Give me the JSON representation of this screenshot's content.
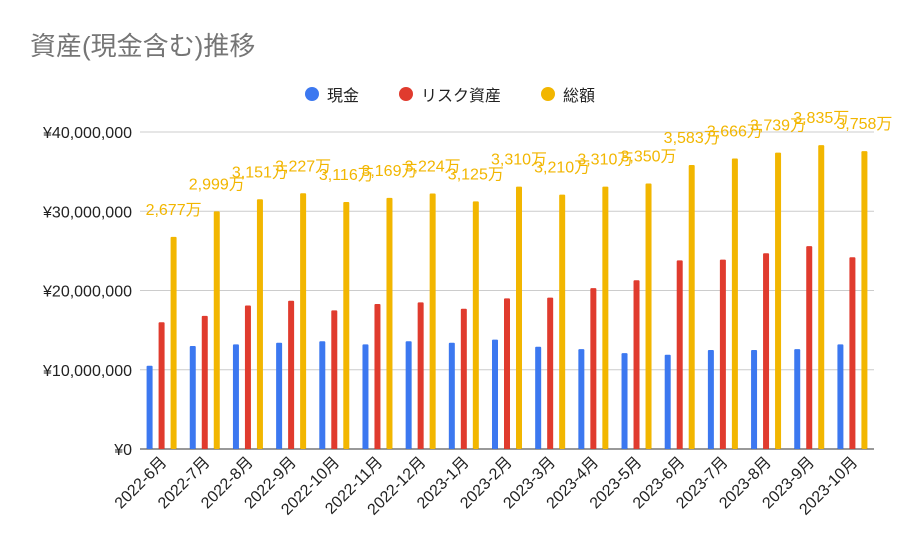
{
  "chart_data": {
    "type": "bar",
    "title": "資産(現金含む)推移",
    "categories": [
      "2022-6月",
      "2022-7月",
      "2022-8月",
      "2022-9月",
      "2022-10月",
      "2022-11月",
      "2022-12月",
      "2023-1月",
      "2023-2月",
      "2023-3月",
      "2023-4月",
      "2023-5月",
      "2023-6月",
      "2023-7月",
      "2023-8月",
      "2023-9月",
      "2023-10月"
    ],
    "series": [
      {
        "name": "現金",
        "color": "#3c78f0",
        "values": [
          10500000,
          13000000,
          13200000,
          13400000,
          13600000,
          13200000,
          13600000,
          13400000,
          13800000,
          12900000,
          12600000,
          12100000,
          11900000,
          12500000,
          12500000,
          12600000,
          13200000
        ]
      },
      {
        "name": "リスク資産",
        "color": "#e03b2e",
        "values": [
          16000000,
          16800000,
          18100000,
          18700000,
          17500000,
          18300000,
          18500000,
          17700000,
          19000000,
          19100000,
          20300000,
          21300000,
          23800000,
          23900000,
          24700000,
          25600000,
          24200000
        ]
      },
      {
        "name": "総額",
        "color": "#f2b600",
        "values": [
          26770000,
          29990000,
          31510000,
          32270000,
          31160000,
          31690000,
          32240000,
          31250000,
          33100000,
          32100000,
          33100000,
          33500000,
          35830000,
          36660000,
          37390000,
          38350000,
          37580000
        ]
      }
    ],
    "data_labels": [
      "2,677万",
      "2,999万",
      "3,151万",
      "3,227万",
      "3,116万",
      "3,169万",
      "3,224万",
      "3,125万",
      "3,310万",
      "3,210万",
      "3,310万",
      "3,350万",
      "3,583万",
      "3,666万",
      "3,739万",
      "3,835万",
      "3,758万"
    ],
    "ylim": [
      0,
      40000000
    ],
    "yticks": [
      0,
      10000000,
      20000000,
      30000000,
      40000000
    ],
    "ytick_labels": [
      "¥0",
      "¥10,000,000",
      "¥20,000,000",
      "¥30,000,000",
      "¥40,000,000"
    ],
    "xlabel": "",
    "ylabel": "",
    "grid": true,
    "legend_position": "top-center"
  }
}
